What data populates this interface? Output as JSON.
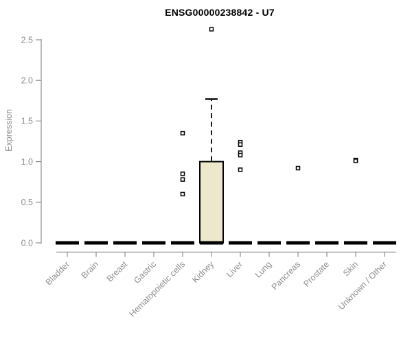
{
  "chart_data": {
    "type": "boxplot",
    "title": "ENSG00000238842 - U7",
    "ylabel": "Expression",
    "xlabel": "",
    "yticks": [
      "0.0",
      "0.5",
      "1.0",
      "1.5",
      "2.0",
      "2.5"
    ],
    "ylim": [
      0,
      2.75
    ],
    "grid": false,
    "legend": "none",
    "categories": [
      "Bladder",
      "Brain",
      "Breast",
      "Gastric",
      "Hematopoietic cells",
      "Kidney",
      "Liver",
      "Lung",
      "Pancreas",
      "Prostate",
      "Skin",
      "Unknown / Other"
    ],
    "series": [
      {
        "category": "Bladder",
        "whisker_low": 0,
        "q1": 0,
        "median": 0,
        "q3": 0,
        "whisker_high": 0,
        "outliers": []
      },
      {
        "category": "Brain",
        "whisker_low": 0,
        "q1": 0,
        "median": 0,
        "q3": 0,
        "whisker_high": 0,
        "outliers": []
      },
      {
        "category": "Breast",
        "whisker_low": 0,
        "q1": 0,
        "median": 0,
        "q3": 0,
        "whisker_high": 0,
        "outliers": []
      },
      {
        "category": "Gastric",
        "whisker_low": 0,
        "q1": 0,
        "median": 0,
        "q3": 0,
        "whisker_high": 0,
        "outliers": []
      },
      {
        "category": "Hematopoietic cells",
        "whisker_low": 0,
        "q1": 0,
        "median": 0,
        "q3": 0,
        "whisker_high": 0,
        "outliers": [
          1.35,
          0.85,
          0.78,
          0.6
        ]
      },
      {
        "category": "Kidney",
        "whisker_low": 0,
        "q1": 0,
        "median": 0,
        "q3": 1.0,
        "whisker_high": 1.77,
        "outliers": [
          2.63
        ]
      },
      {
        "category": "Liver",
        "whisker_low": 0,
        "q1": 0,
        "median": 0,
        "q3": 0,
        "whisker_high": 0,
        "outliers": [
          1.24,
          1.21,
          1.11,
          1.08,
          0.9
        ]
      },
      {
        "category": "Lung",
        "whisker_low": 0,
        "q1": 0,
        "median": 0,
        "q3": 0,
        "whisker_high": 0,
        "outliers": []
      },
      {
        "category": "Pancreas",
        "whisker_low": 0,
        "q1": 0,
        "median": 0,
        "q3": 0,
        "whisker_high": 0,
        "outliers": [
          0.92
        ]
      },
      {
        "category": "Prostate",
        "whisker_low": 0,
        "q1": 0,
        "median": 0,
        "q3": 0,
        "whisker_high": 0,
        "outliers": []
      },
      {
        "category": "Skin",
        "whisker_low": 0,
        "q1": 0,
        "median": 0,
        "q3": 0,
        "whisker_high": 0,
        "outliers": [
          1.02,
          1.01
        ]
      },
      {
        "category": "Unknown / Other",
        "whisker_low": 0,
        "q1": 0,
        "median": 0,
        "q3": 0,
        "whisker_high": 0,
        "outliers": []
      }
    ],
    "style": {
      "box_fill": "#ede7cc",
      "box_stroke": "#000000",
      "median_color": "#000000",
      "outlier_stroke": "#000000",
      "outlier_fill": "#ffffff",
      "axis_color": "#8e8e8e",
      "tick_label_color": "#8e8e8e",
      "title_color": "#000000"
    }
  }
}
